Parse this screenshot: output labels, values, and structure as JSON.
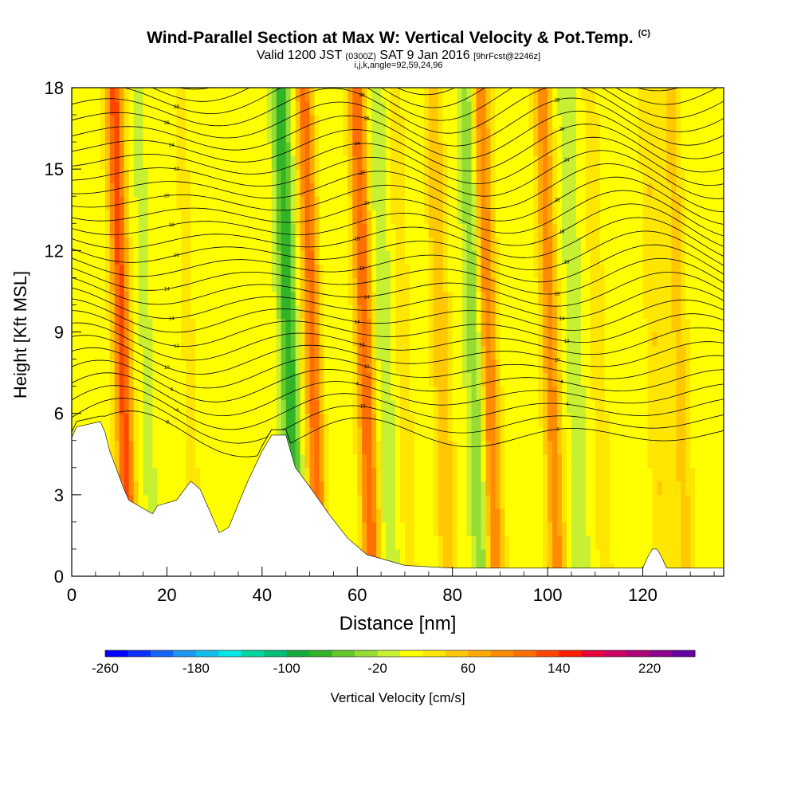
{
  "title": {
    "main": "Wind-Parallel Section at Max W: Vertical Velocity & Pot.Temp.",
    "copyright": "(C)",
    "valid_prefix": "Valid 1200 JST",
    "utc": "(0300Z)",
    "valid_date": "SAT 9 Jan 2016",
    "forecast": "[9hrFcst@2246z]",
    "params": "i,j,k,angle=92,59,24,96"
  },
  "chart_data": {
    "type": "heatmap",
    "xlabel": "Distance [nm]",
    "ylabel": "Height [Kft MSL]",
    "xlim": [
      0,
      137
    ],
    "ylim": [
      0,
      18
    ],
    "x_ticks": [
      "0",
      "20",
      "40",
      "60",
      "80",
      "100",
      "120"
    ],
    "y_ticks": [
      "0",
      "3",
      "6",
      "9",
      "12",
      "15",
      "18"
    ],
    "colorbar": {
      "label": "Vertical Velocity [cm/s]",
      "range": [
        -260,
        260
      ],
      "ticks": [
        "-260",
        "-180",
        "-100",
        "-20",
        "60",
        "140",
        "220"
      ],
      "colors": [
        "#0000ff",
        "#0a32ff",
        "#1466f5",
        "#1e96f0",
        "#14beeb",
        "#00e6e6",
        "#00d2a0",
        "#00be78",
        "#14aa3c",
        "#32b428",
        "#64c828",
        "#96dc32",
        "#c8f032",
        "#ffff00",
        "#ffe600",
        "#ffc800",
        "#ffaa00",
        "#ff8c00",
        "#ff6e00",
        "#ff4600",
        "#ff1e00",
        "#e6003c",
        "#c80064",
        "#aa0078",
        "#8c008c",
        "#6400a0"
      ]
    },
    "velocity_bands": [
      {
        "x": 11,
        "w": 120
      },
      {
        "x": 16,
        "w": -15
      },
      {
        "x": 25,
        "w": 15
      },
      {
        "x": 33,
        "w": 10
      },
      {
        "x": 38,
        "w": -10
      },
      {
        "x": 46,
        "w": -90
      },
      {
        "x": 51,
        "w": 100
      },
      {
        "x": 55,
        "w": -10
      },
      {
        "x": 62,
        "w": 110
      },
      {
        "x": 66,
        "w": -30
      },
      {
        "x": 70,
        "w": 20
      },
      {
        "x": 78,
        "w": 50
      },
      {
        "x": 85,
        "w": -50
      },
      {
        "x": 88,
        "w": 90
      },
      {
        "x": 95,
        "w": -10
      },
      {
        "x": 101,
        "w": 80
      },
      {
        "x": 106,
        "w": -25
      },
      {
        "x": 111,
        "w": 20
      },
      {
        "x": 118,
        "w": -10
      },
      {
        "x": 123,
        "w": 30
      },
      {
        "x": 128,
        "w": 40
      }
    ],
    "terrain": {
      "x": [
        0,
        1,
        6,
        7,
        8,
        11,
        12,
        17,
        18,
        22,
        25,
        27,
        29,
        31,
        33,
        37,
        40,
        42,
        45,
        47,
        50,
        54,
        58,
        62,
        66,
        70,
        80,
        100,
        110,
        120,
        121,
        122,
        123,
        124,
        125,
        137
      ],
      "height": [
        5.1,
        5.5,
        5.7,
        5.3,
        4.6,
        3.2,
        2.8,
        2.3,
        2.6,
        2.8,
        3.5,
        3.2,
        2.4,
        1.6,
        1.8,
        3.5,
        4.6,
        5.2,
        5.2,
        4.0,
        3.3,
        2.3,
        1.4,
        0.8,
        0.6,
        0.4,
        0.3,
        0.3,
        0.3,
        0.3,
        0.7,
        1.0,
        1.0,
        0.7,
        0.3,
        0.3
      ]
    },
    "isentrope_labels": [
      "-8",
      "-8",
      "-10",
      "-4",
      "-4",
      "4",
      "4",
      "4",
      "10",
      "10",
      "10",
      "12",
      "12",
      "12",
      "14",
      "14",
      "14",
      "14",
      "14",
      "16",
      "16",
      "16",
      "16",
      "18",
      "18",
      "18",
      "20",
      "20",
      "20",
      "22",
      "22",
      "24",
      "24",
      "24",
      "26",
      "26",
      "26",
      "28",
      "28",
      "28",
      "30",
      "30",
      "30",
      "32",
      "32",
      "34",
      "34",
      "36",
      "36",
      "38",
      "40",
      "40"
    ]
  }
}
